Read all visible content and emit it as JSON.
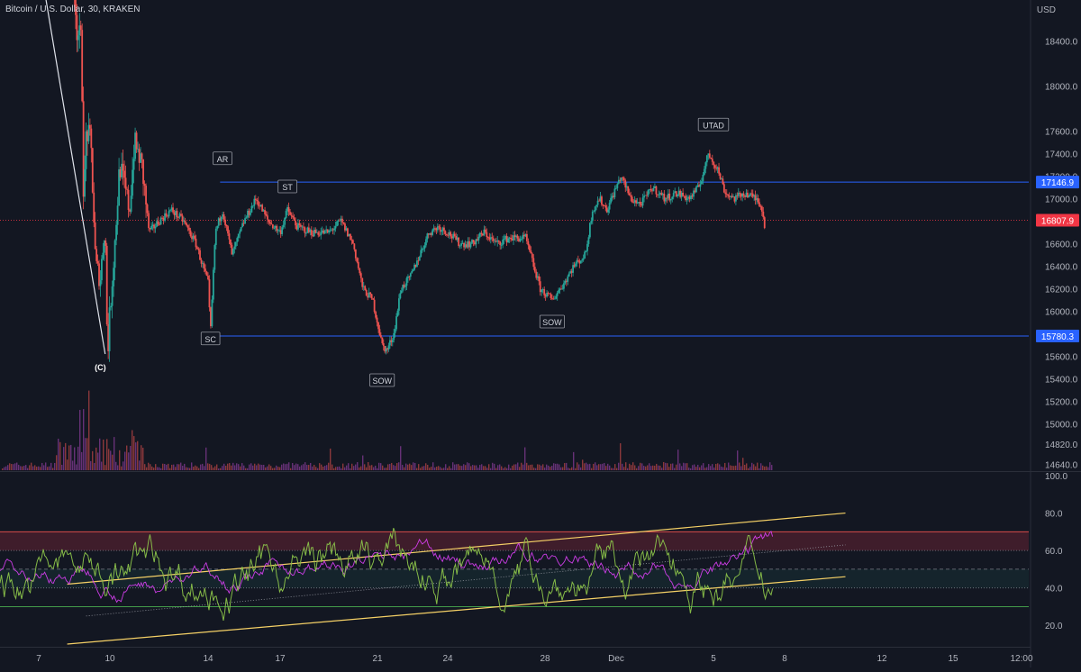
{
  "header": {
    "symbol_title": "Bitcoin / U.S. Dollar, 30, KRAKEN",
    "currency": "USD"
  },
  "colors": {
    "background": "#131722",
    "axis_text": "#b2b5be",
    "level_line": "#2962ff",
    "last_price_badge": "#f23645",
    "level_badge": "#2962ff",
    "candle_up": "#26a69a",
    "candle_down": "#ef5350",
    "vol_up": "#ab47bc",
    "vol_down": "#ef5350",
    "rsi": "#8bc34a",
    "rsi_secondary": "#e040fb",
    "overbought_zone": "#f2365033",
    "trendline": "#f5d066"
  },
  "chart_data": [
    {
      "type": "candlestick",
      "name": "price",
      "title": "Bitcoin / U.S. Dollar, 30, KRAKEN",
      "ylabel": "USD",
      "ylim": [
        14580,
        18700
      ],
      "y_ticks": [
        "18400.0",
        "18000.0",
        "17600.0",
        "17400.0",
        "17200.0",
        "17000.0",
        "16600.0",
        "16400.0",
        "16200.0",
        "16000.0",
        "15600.0",
        "15400.0",
        "15200.0",
        "15000.0",
        "14820.0",
        "14640.0"
      ],
      "x_ticks": [
        "7",
        "10",
        "14",
        "17",
        "21",
        "24",
        "28",
        "Dec",
        "5",
        "8",
        "12",
        "15",
        "12:00"
      ],
      "price_path": [
        [
          7.0,
          18300
        ],
        [
          8.5,
          18900
        ],
        [
          8.6,
          18500
        ],
        [
          8.8,
          18400
        ],
        [
          8.9,
          16900
        ],
        [
          9.0,
          17600
        ],
        [
          9.2,
          17500
        ],
        [
          9.4,
          16400
        ],
        [
          9.6,
          16300
        ],
        [
          9.8,
          16800
        ],
        [
          9.9,
          15600
        ],
        [
          10.0,
          16000
        ],
        [
          10.2,
          16600
        ],
        [
          10.4,
          17300
        ],
        [
          10.6,
          17100
        ],
        [
          10.8,
          16900
        ],
        [
          11.0,
          17500
        ],
        [
          11.3,
          17300
        ],
        [
          11.6,
          16700
        ],
        [
          12.0,
          16800
        ],
        [
          12.5,
          16900
        ],
        [
          13.0,
          16800
        ],
        [
          13.5,
          16600
        ],
        [
          14.0,
          16250
        ],
        [
          14.1,
          15800
        ],
        [
          14.3,
          16700
        ],
        [
          14.6,
          16900
        ],
        [
          15.0,
          16500
        ],
        [
          15.5,
          16800
        ],
        [
          16.0,
          17000
        ],
        [
          16.5,
          16800
        ],
        [
          17.0,
          16700
        ],
        [
          17.3,
          16900
        ],
        [
          17.7,
          16750
        ],
        [
          18.3,
          16700
        ],
        [
          19.0,
          16700
        ],
        [
          19.5,
          16800
        ],
        [
          20.0,
          16600
        ],
        [
          20.4,
          16200
        ],
        [
          20.8,
          16100
        ],
        [
          21.2,
          15700
        ],
        [
          21.4,
          15650
        ],
        [
          21.7,
          15800
        ],
        [
          22.0,
          16200
        ],
        [
          22.4,
          16300
        ],
        [
          22.8,
          16500
        ],
        [
          23.2,
          16700
        ],
        [
          23.6,
          16750
        ],
        [
          24.0,
          16700
        ],
        [
          24.5,
          16600
        ],
        [
          25.0,
          16600
        ],
        [
          25.5,
          16700
        ],
        [
          26.0,
          16600
        ],
        [
          26.5,
          16650
        ],
        [
          27.2,
          16650
        ],
        [
          27.8,
          16200
        ],
        [
          28.3,
          16100
        ],
        [
          28.8,
          16250
        ],
        [
          29.2,
          16400
        ],
        [
          29.7,
          16500
        ],
        [
          30.0,
          16900
        ],
        [
          30.3,
          17000
        ],
        [
          30.6,
          16900
        ],
        [
          30.9,
          17050
        ],
        [
          31.2,
          17200
        ],
        [
          31.6,
          17000
        ],
        [
          32.0,
          16950
        ],
        [
          32.5,
          17100
        ],
        [
          33.0,
          17000
        ],
        [
          33.5,
          17050
        ],
        [
          34.0,
          17000
        ],
        [
          34.4,
          17100
        ],
        [
          34.8,
          17400
        ],
        [
          35.2,
          17250
        ],
        [
          35.5,
          17050
        ],
        [
          35.9,
          17000
        ],
        [
          36.3,
          17050
        ],
        [
          36.8,
          17000
        ],
        [
          37.0,
          16950
        ],
        [
          37.2,
          16720
        ]
      ],
      "horizontal_levels": [
        {
          "price": 17146.9,
          "label": "17146.9",
          "from_x": 14.5
        },
        {
          "price": 15780.3,
          "label": "15780.3",
          "from_x": 14.2
        }
      ],
      "last_price": {
        "price": 16807.9,
        "label": "16807.9"
      },
      "annotations": [
        {
          "label": "(C)",
          "x": 9.9,
          "price": 15500,
          "style": "plain"
        },
        {
          "label": "SC",
          "x": 14.1,
          "price": 15750,
          "style": "box"
        },
        {
          "label": "AR",
          "x": 14.6,
          "price": 17350,
          "style": "box"
        },
        {
          "label": "ST",
          "x": 17.3,
          "price": 17100,
          "style": "box"
        },
        {
          "label": "SOW",
          "x": 21.2,
          "price": 15380,
          "style": "box"
        },
        {
          "label": "SOW",
          "x": 28.3,
          "price": 15900,
          "style": "box"
        },
        {
          "label": "UTAD",
          "x": 35.0,
          "price": 17650,
          "style": "box"
        }
      ],
      "drawn_line": {
        "from": [
          7.2,
          18900
        ],
        "to": [
          9.8,
          15620
        ]
      }
    },
    {
      "type": "line",
      "name": "oscillator",
      "ylim": [
        10,
        100
      ],
      "y_ticks": [
        "100.0",
        "80.0",
        "60.0",
        "40.0",
        "20.0"
      ],
      "reference_levels": [
        70,
        60,
        50,
        40,
        30
      ],
      "overbought_band": [
        60,
        70
      ],
      "trend_channel": [
        {
          "from": [
            8.2,
            10
          ],
          "to": [
            40.5,
            46
          ]
        },
        {
          "from": [
            8.2,
            42
          ],
          "to": [
            40.5,
            80
          ]
        },
        {
          "from": [
            9.0,
            25
          ],
          "to": [
            40.5,
            63
          ],
          "dotted": true
        }
      ]
    }
  ]
}
